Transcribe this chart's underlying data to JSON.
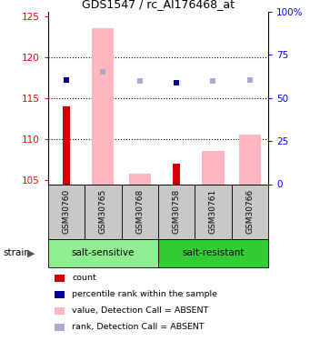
{
  "title": "GDS1547 / rc_AI176468_at",
  "samples": [
    "GSM30760",
    "GSM30765",
    "GSM30768",
    "GSM30758",
    "GSM30761",
    "GSM30766"
  ],
  "ylim_left": [
    104.5,
    125.5
  ],
  "ylim_right": [
    0,
    100
  ],
  "yticks_left": [
    105,
    110,
    115,
    120,
    125
  ],
  "yticks_right": [
    0,
    25,
    50,
    75,
    100
  ],
  "ytick_labels_right": [
    "0",
    "25",
    "50",
    "75",
    "100%"
  ],
  "red_bars": [
    114.0,
    null,
    null,
    107.0,
    null,
    null
  ],
  "pink_bars": [
    null,
    123.5,
    105.8,
    null,
    108.5,
    110.5
  ],
  "blue_squares": [
    117.2,
    118.2,
    117.1,
    116.9,
    117.1,
    117.2
  ],
  "blue_squares_absent": [
    false,
    true,
    true,
    false,
    true,
    true
  ],
  "grid_yticks": [
    110,
    115,
    120
  ],
  "ss_color": "#90ee90",
  "sr_color": "#32cd32",
  "gray_color": "#c8c8c8",
  "count_color": "#cc0000",
  "percentile_color": "#000099",
  "pink_color": "#ffb6c1",
  "light_blue_color": "#aaaacc"
}
